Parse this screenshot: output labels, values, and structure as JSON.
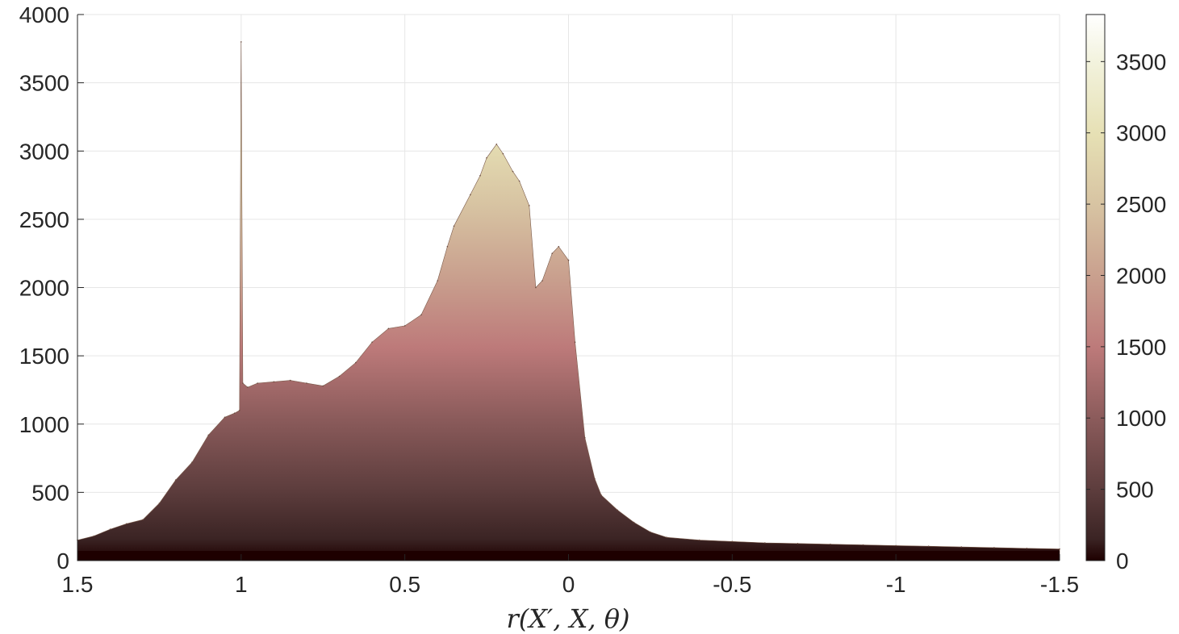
{
  "chart_data": {
    "type": "area",
    "title": "",
    "xlabel": "r(X′, X, θ)",
    "ylabel": "",
    "xlim": [
      1.5,
      -1.5
    ],
    "x_reversed": true,
    "ylim": [
      0,
      4000
    ],
    "grid": true,
    "colormap": "pink",
    "x_ticks": [
      "1.5",
      "1",
      "0.5",
      "0",
      "-0.5",
      "-1",
      "-1.5"
    ],
    "y_ticks": [
      "0",
      "500",
      "1000",
      "1500",
      "2000",
      "2500",
      "3000",
      "3500",
      "4000"
    ],
    "colorbar": {
      "range": [
        0,
        3830
      ],
      "ticks": [
        "0",
        "500",
        "1000",
        "1500",
        "2000",
        "2500",
        "3000",
        "3500"
      ]
    },
    "series": [
      {
        "x": [
          1.5,
          1.45,
          1.4,
          1.35,
          1.3,
          1.25,
          1.2,
          1.15,
          1.1,
          1.05,
          1.02,
          1.005,
          1.0,
          0.995,
          0.98,
          0.95,
          0.9,
          0.85,
          0.8,
          0.75,
          0.7,
          0.65,
          0.6,
          0.55,
          0.5,
          0.45,
          0.4,
          0.37,
          0.35,
          0.3,
          0.27,
          0.25,
          0.22,
          0.2,
          0.17,
          0.15,
          0.12,
          0.1,
          0.08,
          0.05,
          0.03,
          0.0,
          -0.02,
          -0.05,
          -0.08,
          -0.1,
          -0.15,
          -0.2,
          -0.25,
          -0.3,
          -0.4,
          -0.5,
          -0.6,
          -0.7,
          -0.8,
          -0.9,
          -1.0,
          -1.1,
          -1.2,
          -1.3,
          -1.4,
          -1.5
        ],
        "values": [
          150,
          180,
          230,
          270,
          300,
          420,
          590,
          720,
          920,
          1050,
          1080,
          1100,
          3800,
          1300,
          1270,
          1300,
          1310,
          1320,
          1300,
          1280,
          1350,
          1450,
          1600,
          1700,
          1720,
          1800,
          2050,
          2300,
          2450,
          2680,
          2820,
          2950,
          3050,
          2980,
          2850,
          2780,
          2600,
          2000,
          2050,
          2250,
          2300,
          2200,
          1600,
          900,
          600,
          480,
          370,
          280,
          210,
          170,
          150,
          140,
          130,
          125,
          120,
          115,
          110,
          105,
          100,
          95,
          90,
          85
        ]
      }
    ]
  }
}
